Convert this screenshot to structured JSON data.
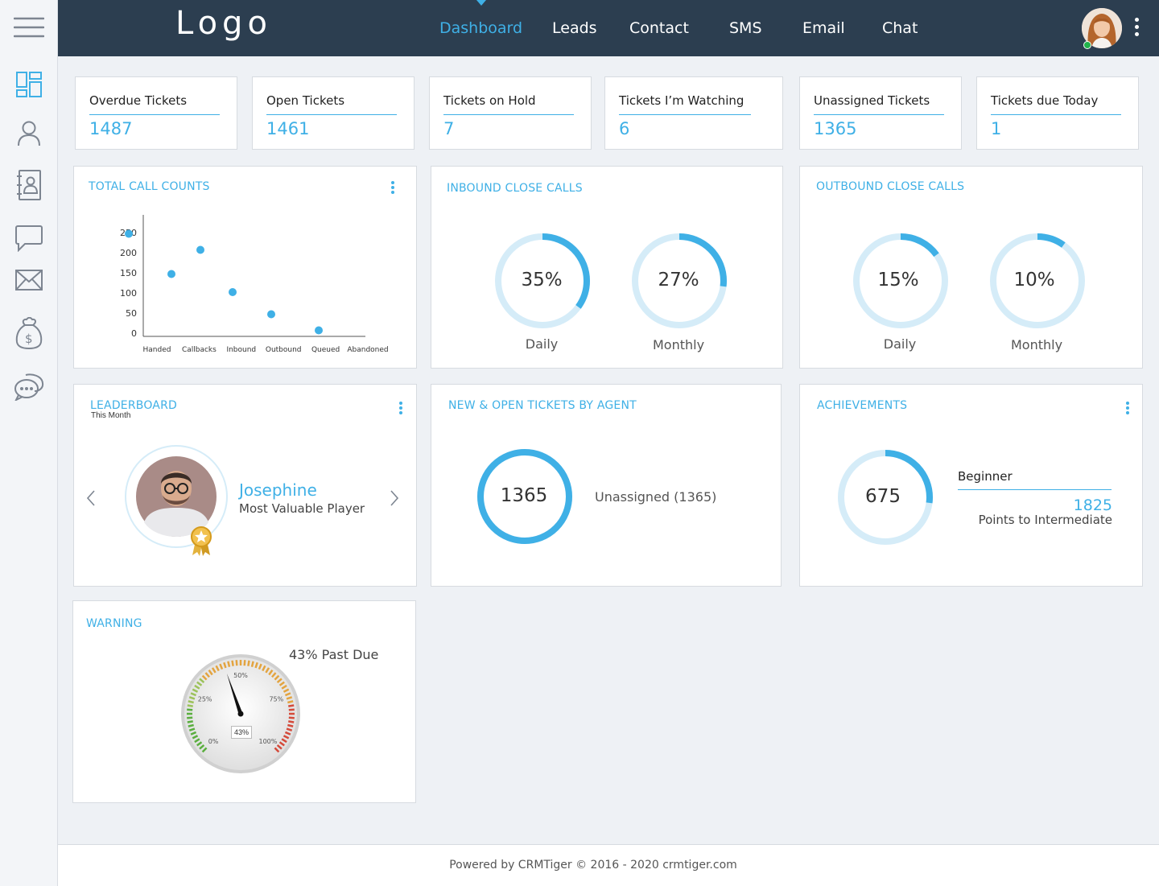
{
  "header": {
    "logo": "Logo",
    "nav": [
      "Dashboard",
      "Leads",
      "Contact",
      "SMS",
      "Email",
      "Chat"
    ],
    "active_nav": "Dashboard"
  },
  "sidebar": {
    "icons": [
      "hamburger-menu-icon",
      "dashboard-icon",
      "user-icon",
      "contacts-book-icon",
      "chat-bubble-icon",
      "mail-icon",
      "money-bag-icon",
      "conversation-icon"
    ]
  },
  "stats": [
    {
      "label": "Overdue Tickets",
      "value": "1487"
    },
    {
      "label": "Open Tickets",
      "value": "1461"
    },
    {
      "label": "Tickets on Hold",
      "value": "7"
    },
    {
      "label": "Tickets I’m Watching",
      "value": "6"
    },
    {
      "label": "Unassigned Tickets",
      "value": "1365"
    },
    {
      "label": "Tickets due Today",
      "value": "1"
    }
  ],
  "total_calls": {
    "title": "TOTAL CALL COUNTS"
  },
  "chart_data": {
    "type": "scatter",
    "title": "TOTAL CALL COUNTS",
    "categories": [
      "Handed",
      "Callbacks",
      "Inbound",
      "Outbound",
      "Queued",
      "Abandoned"
    ],
    "values": [
      155,
      215,
      110,
      55,
      15,
      255
    ],
    "yticks": [
      "0",
      "50",
      "100",
      "150",
      "200",
      "250"
    ],
    "ylim": [
      0,
      250
    ],
    "xlabel": "",
    "ylabel": "",
    "grid": false,
    "color": "#3fb0e6"
  },
  "inbound": {
    "title": "INBOUND CLOSE CALLS",
    "daily": {
      "value": "35%",
      "label": "Daily",
      "fraction": 0.35
    },
    "monthly": {
      "value": "27%",
      "label": "Monthly",
      "fraction": 0.27
    }
  },
  "outbound": {
    "title": "OUTBOUND CLOSE CALLS",
    "daily": {
      "value": "15%",
      "label": "Daily",
      "fraction": 0.15
    },
    "monthly": {
      "value": "10%",
      "label": "Monthly",
      "fraction": 0.1
    }
  },
  "leaderboard": {
    "title": "LEADERBOARD",
    "subtitle": "This Month",
    "name": "Josephine",
    "role": "Most Valuable Player"
  },
  "new_open": {
    "title": "NEW & OPEN TICKETS BY AGENT",
    "value": "1365",
    "legend": "Unassigned (1365)",
    "fraction": 1.0
  },
  "achievements": {
    "title": "ACHIEVEMENTS",
    "value": "675",
    "fraction": 0.27,
    "level": "Beginner",
    "points": "1825",
    "points_label": "Points to Intermediate"
  },
  "warning": {
    "title": "WARNING",
    "caption": "43% Past Due",
    "gauge_value": "43%",
    "fraction": 0.43,
    "ticks": [
      "0%",
      "25%",
      "50%",
      "75%",
      "100%"
    ]
  },
  "footer": {
    "text": "Powered by CRMTiger © 2016 - 2020  crmtiger.com"
  },
  "colors": {
    "accent": "#3fb0e6",
    "ring_bg": "#d5ecf8",
    "topbar": "#2c3e50"
  }
}
